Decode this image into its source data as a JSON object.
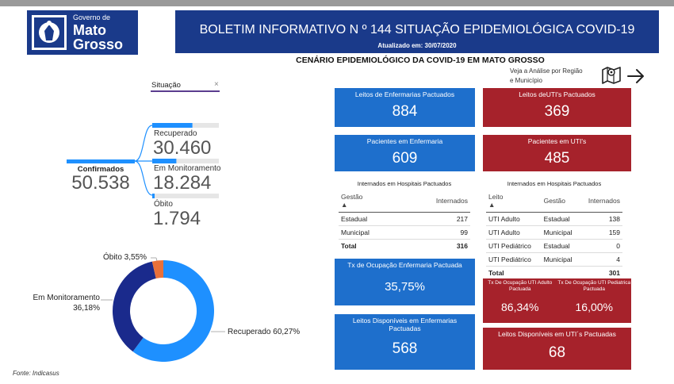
{
  "logo": {
    "line1": "Governo de",
    "line2": "Mato",
    "line3": "Grosso"
  },
  "header": {
    "title": "BOLETIM INFORMATIVO N º 144 SITUAÇÃO EPIDEMIOLÓGICA COVID-19",
    "updated": "Atualizado em: 30/07/2020"
  },
  "subtitle": "CENÁRIO EPIDEMIOLÓGICO DA COVID-19 EM MATO GROSSO",
  "nav": {
    "veja_line1": "Veja a Análise por Região",
    "veja_line2": "e Município"
  },
  "filter": {
    "label": "Situação",
    "clear": "×"
  },
  "tree": {
    "root_label": "Confirmados",
    "root_value": "50.538",
    "nodes": [
      {
        "label": "Recuperado",
        "value": "30.460",
        "fraction": 0.6027
      },
      {
        "label": "Em Monitoramento",
        "value": "18.284",
        "fraction": 0.3618
      },
      {
        "label": "Óbito",
        "value": "1.794",
        "fraction": 0.0355
      }
    ]
  },
  "donut": {
    "segments": [
      {
        "name": "Recuperado",
        "label": "Recuperado 60,27%",
        "value": 60.27,
        "color": "#1e90ff"
      },
      {
        "name": "Óbito",
        "label": "Óbito 3,55%",
        "value": 3.55,
        "color": "#e8703a"
      },
      {
        "name": "Em Monitoramento",
        "label_line1": "Em Monitoramento",
        "label_line2": "36,18%",
        "value": 36.18,
        "color": "#1a2a8c"
      }
    ]
  },
  "source": "Fonte: Indicasus",
  "cards": {
    "leitos_enf": {
      "title": "Leitos de Enfermarias Pactuados",
      "value": "884"
    },
    "leitos_uti": {
      "title": "Leitos deUTI's Pactuados",
      "value": "369"
    },
    "pac_enf": {
      "title": "Pacientes em Enfermaria",
      "value": "609"
    },
    "pac_uti": {
      "title": "Pacientes em UTI's",
      "value": "485"
    },
    "tx_enf": {
      "title": "Tx de Ocupação Enfermaria Pactuada",
      "value": "35,75%"
    },
    "tx_uti_adulto": {
      "title": "Tx De Ocupação UTI Adulto Pactuada",
      "value": "86,34%"
    },
    "tx_uti_ped": {
      "title": "Tx De Ocupação UTI Pediatrica Pactuada",
      "value": "16,00%"
    },
    "disp_enf": {
      "title": "Leitos Disponíveis em Enfermarias Pactuadas",
      "value": "568"
    },
    "disp_uti": {
      "title": "Leitos Disponíveis em UTI´s Pactuadas",
      "value": "68"
    }
  },
  "table_enf": {
    "title": "Internados em Hospitais Pactuados",
    "headers": [
      "Gestão",
      "Internados"
    ],
    "rows": [
      [
        "Estadual",
        "217"
      ],
      [
        "Municipal",
        "99"
      ]
    ],
    "total": [
      "Total",
      "316"
    ]
  },
  "table_uti": {
    "title": "Internados em Hospitais Pactuados",
    "headers": [
      "Leito",
      "Gestão",
      "Internados"
    ],
    "rows": [
      [
        "UTI Adulto",
        "Estadual",
        "138"
      ],
      [
        "UTI Adulto",
        "Municipal",
        "159"
      ],
      [
        "UTI Pediátrico",
        "Estadual",
        "0"
      ],
      [
        "UTI Pediátrico",
        "Municipal",
        "4"
      ]
    ],
    "total": [
      "Total",
      "",
      "301"
    ]
  }
}
